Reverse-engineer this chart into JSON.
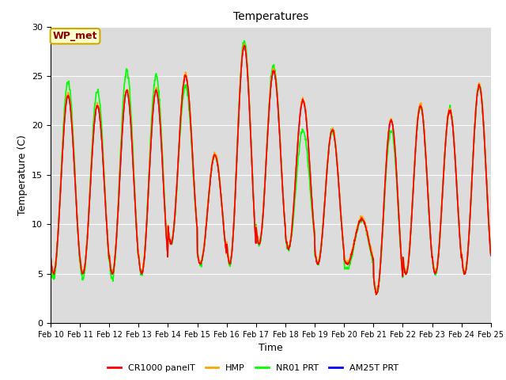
{
  "title": "Temperatures",
  "xlabel": "Time",
  "ylabel": "Temperature (C)",
  "ylim": [
    0,
    30
  ],
  "annotation": "WP_met",
  "legend_labels": [
    "CR1000 panelT",
    "HMP",
    "NR01 PRT",
    "AM25T PRT"
  ],
  "legend_colors": [
    "red",
    "orange",
    "lime",
    "blue"
  ],
  "bg_color": "#dcdcdc",
  "fig_facecolor": "#ffffff",
  "num_days": 15,
  "points_per_day": 96,
  "x_tick_labels": [
    "Feb 10",
    "Feb 11",
    "Feb 12",
    "Feb 13",
    "Feb 14",
    "Feb 15",
    "Feb 16",
    "Feb 17",
    "Feb 18",
    "Feb 19",
    "Feb 20",
    "Feb 21",
    "Feb 22",
    "Feb 23",
    "Feb 24",
    "Feb 25"
  ],
  "day_maxes": [
    23,
    22,
    23.5,
    23.5,
    25,
    17,
    28,
    25.5,
    22.5,
    19.5,
    10.5,
    20.5,
    22,
    21.5,
    24
  ],
  "day_mins": [
    5,
    5,
    5,
    5,
    8,
    6,
    6,
    8,
    7.5,
    6,
    6,
    3,
    5,
    5,
    5
  ],
  "nr01_day_maxes": [
    24.5,
    23.5,
    25.5,
    25,
    24,
    17,
    28.5,
    26,
    19.5,
    19.5,
    10.5,
    19.5,
    22,
    21.5,
    24
  ],
  "nr01_day_mins": [
    4.5,
    4.5,
    4.5,
    5,
    8,
    6,
    6,
    8,
    7.5,
    6,
    5.5,
    3,
    5,
    5,
    5
  ],
  "figsize": [
    6.4,
    4.8
  ],
  "dpi": 100,
  "title_fontsize": 10,
  "axis_fontsize": 9,
  "tick_fontsize": 7,
  "legend_fontsize": 8,
  "lw": 1.2
}
